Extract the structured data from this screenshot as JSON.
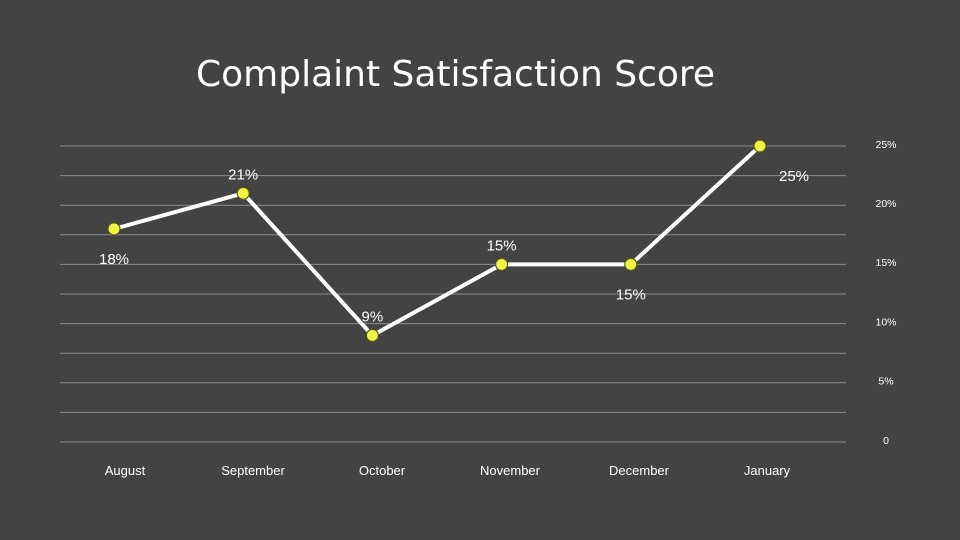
{
  "colors": {
    "background": "#434343",
    "line": "#ffffff",
    "marker": "#eef542",
    "grid": "#8c8c8c",
    "text": "#ffffff"
  },
  "chart_data": {
    "type": "line",
    "title": "Complaint Satisfaction Score",
    "xlabel": "",
    "ylabel": "",
    "categories": [
      "August",
      "September",
      "October",
      "November",
      "December",
      "January"
    ],
    "series": [
      {
        "values": [
          18,
          21,
          9,
          15,
          15,
          25
        ],
        "data_labels": [
          "18%",
          "21%",
          "9%",
          "15%",
          "15%",
          "25%"
        ]
      }
    ],
    "y_ticks": [
      {
        "value": 0,
        "label": "0"
      },
      {
        "value": 5,
        "label": "5%"
      },
      {
        "value": 10,
        "label": "10%"
      },
      {
        "value": 15,
        "label": "15%"
      },
      {
        "value": 20,
        "label": "20%"
      },
      {
        "value": 25,
        "label": "25%"
      }
    ],
    "ylim": [
      0,
      25
    ],
    "y_axis_side": "right",
    "grid": true,
    "legend": "none"
  }
}
